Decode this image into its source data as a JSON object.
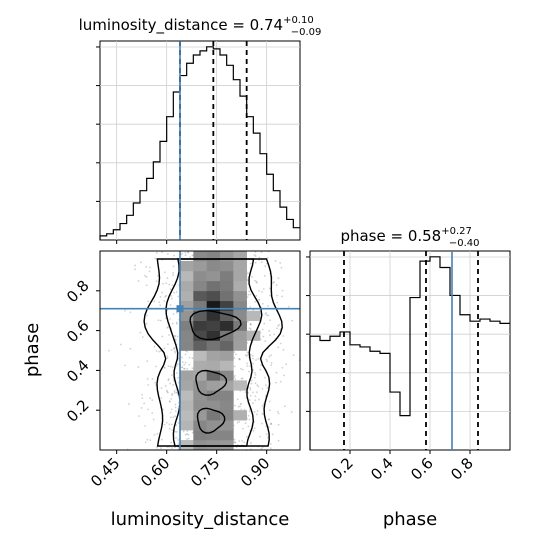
{
  "chart_data": {
    "type": "corner",
    "parameters": [
      "luminosity_distance",
      "phase"
    ],
    "truth": {
      "luminosity_distance": 0.64,
      "phase": 0.71
    },
    "truth_color": "#4682b4",
    "panels": {
      "luminosity_distance_hist": {
        "title_prefix": "luminosity_distance = 0.74",
        "title_sup": "+0.10",
        "title_sub": "−0.09",
        "quantiles": [
          0.64,
          0.74,
          0.84
        ],
        "xlim": [
          0.4,
          1.0
        ],
        "bins": [
          0.4,
          0.42,
          0.44,
          0.46,
          0.48,
          0.5,
          0.52,
          0.54,
          0.56,
          0.58,
          0.6,
          0.62,
          0.64,
          0.66,
          0.68,
          0.7,
          0.72,
          0.74,
          0.76,
          0.78,
          0.8,
          0.82,
          0.84,
          0.86,
          0.88,
          0.9,
          0.92,
          0.94,
          0.96,
          0.98,
          1.0
        ],
        "counts": [
          2,
          3,
          5,
          8,
          12,
          18,
          24,
          30,
          38,
          48,
          60,
          72,
          80,
          86,
          90,
          92,
          94,
          93,
          90,
          85,
          78,
          70,
          60,
          52,
          42,
          32,
          24,
          16,
          10,
          6
        ]
      },
      "phase_hist": {
        "title_prefix": "phase = 0.58",
        "title_sup": "+0.27",
        "title_sub": "−0.40",
        "quantiles": [
          0.17,
          0.58,
          0.84
        ],
        "xlim": [
          0.0,
          1.0
        ],
        "bins": [
          0.0,
          0.05,
          0.1,
          0.15,
          0.2,
          0.25,
          0.3,
          0.35,
          0.4,
          0.45,
          0.5,
          0.55,
          0.6,
          0.65,
          0.7,
          0.75,
          0.8,
          0.85,
          0.9,
          0.95,
          1.0
        ],
        "counts": [
          53,
          51,
          53,
          55,
          49,
          48,
          46,
          45,
          27,
          16,
          71,
          88,
          90,
          85,
          72,
          63,
          60,
          61,
          60,
          59
        ]
      },
      "joint": {
        "xlabel": "luminosity_distance",
        "ylabel": "phase",
        "xlim": [
          0.4,
          1.0
        ],
        "ylim": [
          0.0,
          1.0
        ],
        "density_peak": {
          "luminosity_distance": 0.74,
          "phase": 0.63
        }
      }
    },
    "ticks": {
      "luminosity_distance": [
        "0.45",
        "0.60",
        "0.75",
        "0.90"
      ],
      "phase_y": [
        "0.2",
        "0.4",
        "0.6",
        "0.8"
      ],
      "phase_x": [
        "0.2",
        "0.4",
        "0.6",
        "0.8"
      ]
    }
  }
}
